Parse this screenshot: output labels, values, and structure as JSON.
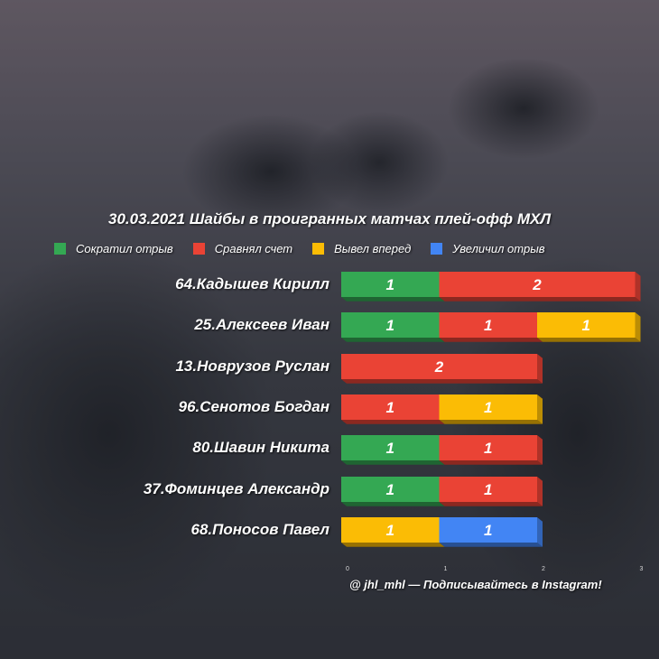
{
  "title": "30.03.2021 Шайбы в проигранных матчах плей-офф МХЛ",
  "legend": [
    {
      "key": "reduced",
      "label": "Сократил отрыв",
      "color": "#34a853"
    },
    {
      "key": "equalized",
      "label": "Сравнял счет",
      "color": "#ea4335"
    },
    {
      "key": "lead",
      "label": "Вывел вперед",
      "color": "#fbbc05"
    },
    {
      "key": "increased",
      "label": "Увеличил отрыв",
      "color": "#4285f4"
    }
  ],
  "players": [
    {
      "label": "64.Кадышев Кирилл"
    },
    {
      "label": "25.Алексеев Иван"
    },
    {
      "label": "13.Новрузов Руслан"
    },
    {
      "label": "96.Сенотов Богдан"
    },
    {
      "label": "80.Шавин Никита"
    },
    {
      "label": "37.Фоминцев Александр"
    },
    {
      "label": "68.Поносов Павел"
    }
  ],
  "chart_data": {
    "type": "bar",
    "orientation": "horizontal",
    "stacked": true,
    "title": "30.03.2021 Шайбы в проигранных матчах плей-офф МХЛ",
    "categories": [
      "64.Кадышев Кирилл",
      "25.Алексеев Иван",
      "13.Новрузов Руслан",
      "96.Сенотов Богдан",
      "80.Шавин Никита",
      "37.Фоминцев Александр",
      "68.Поносов Павел"
    ],
    "series": [
      {
        "name": "Сократил отрыв",
        "color": "#34a853",
        "values": [
          1,
          1,
          0,
          0,
          1,
          1,
          0
        ]
      },
      {
        "name": "Сравнял счет",
        "color": "#ea4335",
        "values": [
          2,
          1,
          2,
          1,
          1,
          1,
          0
        ]
      },
      {
        "name": "Вывел вперед",
        "color": "#fbbc05",
        "values": [
          0,
          1,
          0,
          1,
          0,
          0,
          1
        ]
      },
      {
        "name": "Увеличил отрыв",
        "color": "#4285f4",
        "values": [
          0,
          0,
          0,
          0,
          0,
          0,
          1
        ]
      }
    ],
    "xlim": [
      0,
      3
    ],
    "xticks": [
      "0",
      "1",
      "2",
      "3"
    ],
    "grid": false,
    "legend_position": "top",
    "data_labels": true
  },
  "credit": "@ jhl_mhl — Подписывайтесь в Instagram!"
}
